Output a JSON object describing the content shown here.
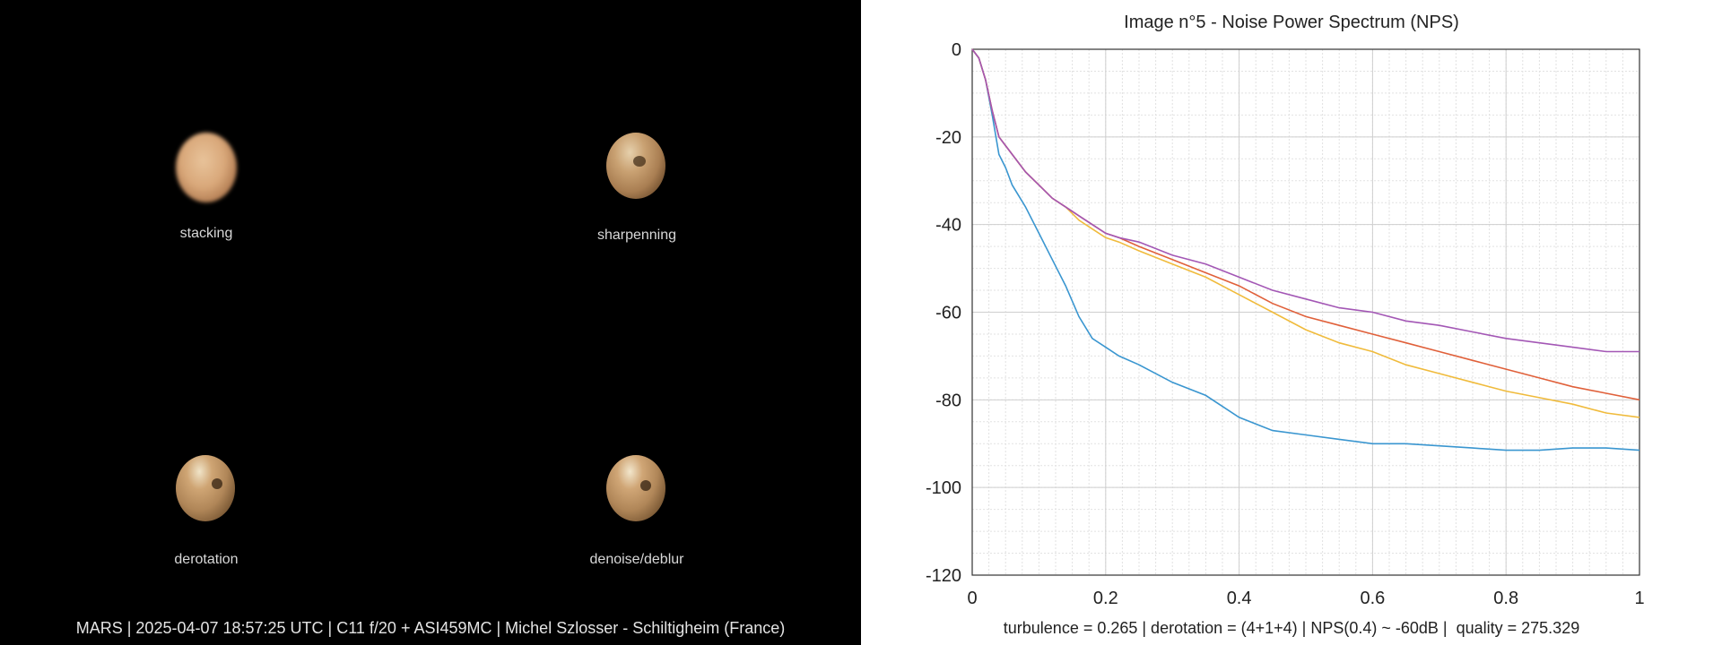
{
  "panels": [
    {
      "label": "stacking"
    },
    {
      "label": "sharpenning"
    },
    {
      "label": "derotation"
    },
    {
      "label": "denoise/deblur"
    }
  ],
  "footer_left": "MARS | 2025-04-07  18:57:25 UTC | C11 f/20 + ASI459MC | Michel Szlosser - Schiltigheim (France)",
  "footer_right": "turbulence = 0.265 | derotation = (4+1+4) | NPS(0.4) ~ -60dB |  quality = 275.329",
  "colors": {
    "background_left": "#000000",
    "planet_base": "#c89a6a",
    "series_blue": "#3a96d0",
    "series_yellow": "#f0bb3c",
    "series_red": "#e0603a",
    "series_purple": "#a357b5"
  },
  "chart_data": {
    "type": "line",
    "title": "Image n°5 - Noise Power Spectrum (NPS)",
    "xlabel": "",
    "ylabel": "",
    "xlim": [
      0,
      1
    ],
    "ylim": [
      -120,
      0
    ],
    "x_ticks": [
      "0",
      "0.2",
      "0.4",
      "0.6",
      "0.8",
      "1"
    ],
    "y_ticks": [
      "0",
      "-20",
      "-40",
      "-60",
      "-80",
      "-100",
      "-120"
    ],
    "grid": true,
    "minor_grid": true,
    "legend": "none",
    "x": [
      0,
      0.01,
      0.02,
      0.03,
      0.04,
      0.05,
      0.06,
      0.08,
      0.1,
      0.12,
      0.14,
      0.16,
      0.18,
      0.2,
      0.22,
      0.25,
      0.3,
      0.35,
      0.4,
      0.45,
      0.5,
      0.55,
      0.6,
      0.65,
      0.7,
      0.75,
      0.8,
      0.85,
      0.9,
      0.95,
      1.0
    ],
    "series": [
      {
        "color": "#3a96d0",
        "values": [
          0,
          -2,
          -7,
          -15,
          -24,
          -27,
          -31,
          -36,
          -42,
          -48,
          -54,
          -61,
          -66,
          -68,
          -70,
          -72,
          -76,
          -79,
          -84,
          -87,
          -88,
          -89,
          -90,
          -90,
          -90.5,
          -91,
          -91.5,
          -91.5,
          -91,
          -91,
          -91.5
        ]
      },
      {
        "color": "#f0bb3c",
        "values": [
          0,
          -2,
          -7,
          -14,
          -20,
          -22,
          -24,
          -28,
          -31,
          -34,
          -36,
          -39,
          -41,
          -43,
          -44,
          -46,
          -49,
          -52,
          -56,
          -60,
          -64,
          -67,
          -69,
          -72,
          -74,
          -76,
          -78,
          -79.5,
          -81,
          -83,
          -84
        ]
      },
      {
        "color": "#e0603a",
        "values": [
          0,
          -2,
          -7,
          -14,
          -20,
          -22,
          -24,
          -28,
          -31,
          -34,
          -36,
          -38,
          -40,
          -42,
          -43,
          -45,
          -48,
          -51,
          -54,
          -58,
          -61,
          -63,
          -65,
          -67,
          -69,
          -71,
          -73,
          -75,
          -77,
          -78.5,
          -80
        ]
      },
      {
        "color": "#a357b5",
        "values": [
          0,
          -2,
          -7,
          -14,
          -20,
          -22,
          -24,
          -28,
          -31,
          -34,
          -36,
          -38,
          -40,
          -42,
          -43,
          -44,
          -47,
          -49,
          -52,
          -55,
          -57,
          -59,
          -60,
          -62,
          -63,
          -64.5,
          -66,
          -67,
          -68,
          -69,
          -69
        ]
      }
    ]
  }
}
